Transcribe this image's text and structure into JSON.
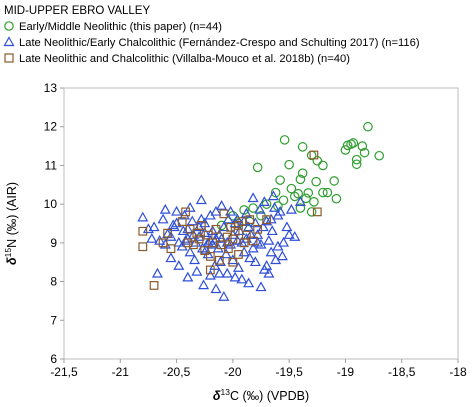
{
  "chart_data": {
    "type": "scatter",
    "title": "MID-UPPER EBRO VALLEY",
    "xlabel": {
      "symbol": "δ",
      "sup": "13",
      "rest": "C (‰) (VPDB)"
    },
    "ylabel": {
      "symbol": "δ",
      "sup": "15",
      "rest": "N (‰) (AIR)"
    },
    "xlim": [
      -21.5,
      -18
    ],
    "ylim": [
      6,
      13
    ],
    "x_ticks": [
      -21.5,
      -21,
      -20.5,
      -20,
      -19.5,
      -19,
      -18.5,
      -18
    ],
    "x_tick_labels": [
      "-21,5",
      "-21",
      "-20,5",
      "-20",
      "-19,5",
      "-19",
      "-18,5",
      "-18"
    ],
    "y_ticks": [
      6,
      7,
      8,
      9,
      10,
      11,
      12,
      13
    ],
    "y_tick_labels": [
      "6",
      "7",
      "8",
      "9",
      "10",
      "11",
      "12",
      "13"
    ],
    "grid": false,
    "legend_position": "top-left",
    "series": [
      {
        "name": "Early/Middle Neolithic (this paper) (n=44)",
        "marker": "circle",
        "color": "#2e9e2e",
        "points": [
          [
            -19.54,
            11.66
          ],
          [
            -19.38,
            11.48
          ],
          [
            -19.3,
            11.26
          ],
          [
            -19.25,
            11.12
          ],
          [
            -19.5,
            11.02
          ],
          [
            -19.38,
            10.8
          ],
          [
            -19.4,
            10.64
          ],
          [
            -19.26,
            10.58
          ],
          [
            -19.48,
            10.4
          ],
          [
            -19.33,
            10.29
          ],
          [
            -19.2,
            10.3
          ],
          [
            -19.62,
            10.3
          ],
          [
            -19.7,
            10.0
          ],
          [
            -19.55,
            10.1
          ],
          [
            -19.45,
            10.2
          ],
          [
            -19.35,
            10.15
          ],
          [
            -19.28,
            10.06
          ],
          [
            -19.4,
            9.9
          ],
          [
            -19.3,
            9.8
          ],
          [
            -19.16,
            10.3
          ],
          [
            -19.1,
            10.6
          ],
          [
            -19.08,
            10.14
          ],
          [
            -19.0,
            11.4
          ],
          [
            -18.98,
            11.52
          ],
          [
            -18.95,
            11.55
          ],
          [
            -18.93,
            11.58
          ],
          [
            -18.8,
            12.0
          ],
          [
            -18.85,
            11.5
          ],
          [
            -18.83,
            11.33
          ],
          [
            -18.7,
            11.25
          ],
          [
            -18.9,
            11.15
          ],
          [
            -18.9,
            11.03
          ],
          [
            -19.2,
            11.0
          ],
          [
            -19.78,
            10.95
          ],
          [
            -19.82,
            9.9
          ],
          [
            -19.9,
            9.85
          ],
          [
            -19.75,
            9.7
          ],
          [
            -19.85,
            9.55
          ],
          [
            -19.95,
            9.5
          ],
          [
            -20.0,
            9.7
          ],
          [
            -20.1,
            9.45
          ],
          [
            -19.6,
            9.95
          ],
          [
            -19.42,
            10.27
          ],
          [
            -19.58,
            10.62
          ]
        ]
      },
      {
        "name": "Late Neolithic/Early Chalcolithic (Fernández-Crespo and Schulting 2017) (n=116)",
        "marker": "triangle",
        "color": "#2f4fd8",
        "points": [
          [
            -20.8,
            9.65
          ],
          [
            -20.62,
            9.6
          ],
          [
            -20.6,
            9.85
          ],
          [
            -20.58,
            9.22
          ],
          [
            -20.55,
            9.15
          ],
          [
            -20.6,
            8.95
          ],
          [
            -20.65,
            9.05
          ],
          [
            -20.52,
            9.4
          ],
          [
            -20.5,
            9.5
          ],
          [
            -20.5,
            9.8
          ],
          [
            -20.48,
            9.0
          ],
          [
            -20.45,
            8.9
          ],
          [
            -20.44,
            9.3
          ],
          [
            -20.42,
            9.05
          ],
          [
            -20.4,
            9.35
          ],
          [
            -20.4,
            9.1
          ],
          [
            -20.38,
            8.75
          ],
          [
            -20.36,
            9.55
          ],
          [
            -20.35,
            9.2
          ],
          [
            -20.34,
            8.55
          ],
          [
            -20.33,
            9.0
          ],
          [
            -20.3,
            9.4
          ],
          [
            -20.3,
            9.15
          ],
          [
            -20.28,
            9.6
          ],
          [
            -20.27,
            8.85
          ],
          [
            -20.25,
            9.5
          ],
          [
            -20.25,
            9.25
          ],
          [
            -20.24,
            8.8
          ],
          [
            -20.22,
            9.0
          ],
          [
            -20.2,
            9.05
          ],
          [
            -20.2,
            9.7
          ],
          [
            -20.18,
            8.95
          ],
          [
            -20.18,
            9.3
          ],
          [
            -20.16,
            8.4
          ],
          [
            -20.15,
            9.1
          ],
          [
            -20.15,
            9.8
          ],
          [
            -20.13,
            8.85
          ],
          [
            -20.12,
            9.2
          ],
          [
            -20.11,
            8.5
          ],
          [
            -20.1,
            9.1
          ],
          [
            -20.1,
            9.95
          ],
          [
            -20.08,
            9.4
          ],
          [
            -20.06,
            8.7
          ],
          [
            -20.05,
            9.0
          ],
          [
            -20.04,
            9.6
          ],
          [
            -20.02,
            8.95
          ],
          [
            -20.0,
            9.2
          ],
          [
            -20.0,
            8.55
          ],
          [
            -19.98,
            9.5
          ],
          [
            -19.96,
            9.05
          ],
          [
            -19.95,
            8.35
          ],
          [
            -19.94,
            9.3
          ],
          [
            -19.92,
            9.0
          ],
          [
            -19.9,
            9.55
          ],
          [
            -19.9,
            8.75
          ],
          [
            -19.88,
            9.1
          ],
          [
            -19.86,
            9.4
          ],
          [
            -19.85,
            8.6
          ],
          [
            -19.84,
            9.2
          ],
          [
            -19.82,
            8.85
          ],
          [
            -19.8,
            9.5
          ],
          [
            -19.78,
            9.2
          ],
          [
            -19.76,
            9.85
          ],
          [
            -19.75,
            8.95
          ],
          [
            -19.73,
            9.4
          ],
          [
            -19.72,
            8.3
          ],
          [
            -19.7,
            9.55
          ],
          [
            -19.68,
            9.05
          ],
          [
            -19.66,
            8.75
          ],
          [
            -19.65,
            9.3
          ],
          [
            -19.63,
            9.9
          ],
          [
            -19.62,
            8.55
          ],
          [
            -19.6,
            9.7
          ],
          [
            -19.55,
            9.0
          ],
          [
            -19.5,
            9.2
          ],
          [
            -20.67,
            8.2
          ],
          [
            -20.7,
            9.4
          ],
          [
            -20.55,
            8.6
          ],
          [
            -20.48,
            8.4
          ],
          [
            -20.4,
            8.1
          ],
          [
            -20.38,
            9.9
          ],
          [
            -20.32,
            8.25
          ],
          [
            -20.28,
            10.1
          ],
          [
            -20.26,
            7.9
          ],
          [
            -20.22,
            8.7
          ],
          [
            -20.2,
            8.15
          ],
          [
            -20.15,
            7.8
          ],
          [
            -20.12,
            8.2
          ],
          [
            -20.08,
            7.6
          ],
          [
            -20.05,
            8.2
          ],
          [
            -20.02,
            9.8
          ],
          [
            -19.98,
            8.1
          ],
          [
            -19.96,
            9.6
          ],
          [
            -19.92,
            8.05
          ],
          [
            -19.88,
            9.75
          ],
          [
            -19.86,
            7.95
          ],
          [
            -19.82,
            10.15
          ],
          [
            -19.8,
            8.5
          ],
          [
            -19.78,
            9.0
          ],
          [
            -19.75,
            7.85
          ],
          [
            -19.72,
            10.05
          ],
          [
            -19.7,
            8.4
          ],
          [
            -19.68,
            8.2
          ],
          [
            -19.66,
            9.6
          ],
          [
            -19.64,
            10.2
          ],
          [
            -19.6,
            8.9
          ],
          [
            -19.58,
            9.8
          ],
          [
            -19.56,
            8.65
          ],
          [
            -19.52,
            9.4
          ],
          [
            -19.48,
            9.85
          ],
          [
            -19.45,
            9.15
          ],
          [
            -19.4,
            10.05
          ],
          [
            -20.75,
            9.35
          ],
          [
            -20.72,
            9.1
          ],
          [
            -20.53,
            9.45
          ],
          [
            -20.43,
            9.7
          ]
        ]
      },
      {
        "name": "Late Neolithic and Chalcolithic (Villalba-Mouco et al. 2018b) (n=40)",
        "marker": "square",
        "color": "#8b5a2b",
        "points": [
          [
            -20.8,
            9.3
          ],
          [
            -20.8,
            8.9
          ],
          [
            -20.7,
            7.9
          ],
          [
            -20.62,
            9.0
          ],
          [
            -20.58,
            9.25
          ],
          [
            -20.55,
            8.85
          ],
          [
            -20.45,
            9.55
          ],
          [
            -20.42,
            9.8
          ],
          [
            -20.4,
            9.0
          ],
          [
            -20.38,
            9.35
          ],
          [
            -20.35,
            8.95
          ],
          [
            -20.3,
            9.1
          ],
          [
            -20.28,
            9.45
          ],
          [
            -20.25,
            8.8
          ],
          [
            -20.22,
            9.2
          ],
          [
            -20.2,
            8.65
          ],
          [
            -20.18,
            9.0
          ],
          [
            -20.15,
            9.35
          ],
          [
            -20.12,
            8.55
          ],
          [
            -20.1,
            8.95
          ],
          [
            -20.08,
            9.75
          ],
          [
            -20.05,
            9.15
          ],
          [
            -20.04,
            8.85
          ],
          [
            -20.02,
            9.4
          ],
          [
            -20.0,
            9.1
          ],
          [
            -19.98,
            9.3
          ],
          [
            -19.95,
            8.7
          ],
          [
            -19.92,
            9.55
          ],
          [
            -19.9,
            9.0
          ],
          [
            -19.88,
            9.2
          ],
          [
            -19.85,
            9.6
          ],
          [
            -19.82,
            9.05
          ],
          [
            -19.78,
            9.35
          ],
          [
            -19.7,
            9.6
          ],
          [
            -19.28,
            11.27
          ],
          [
            -19.25,
            9.8
          ],
          [
            -20.2,
            8.3
          ],
          [
            -20.0,
            8.5
          ],
          [
            -19.95,
            9.45
          ],
          [
            -20.32,
            9.25
          ]
        ]
      }
    ]
  }
}
